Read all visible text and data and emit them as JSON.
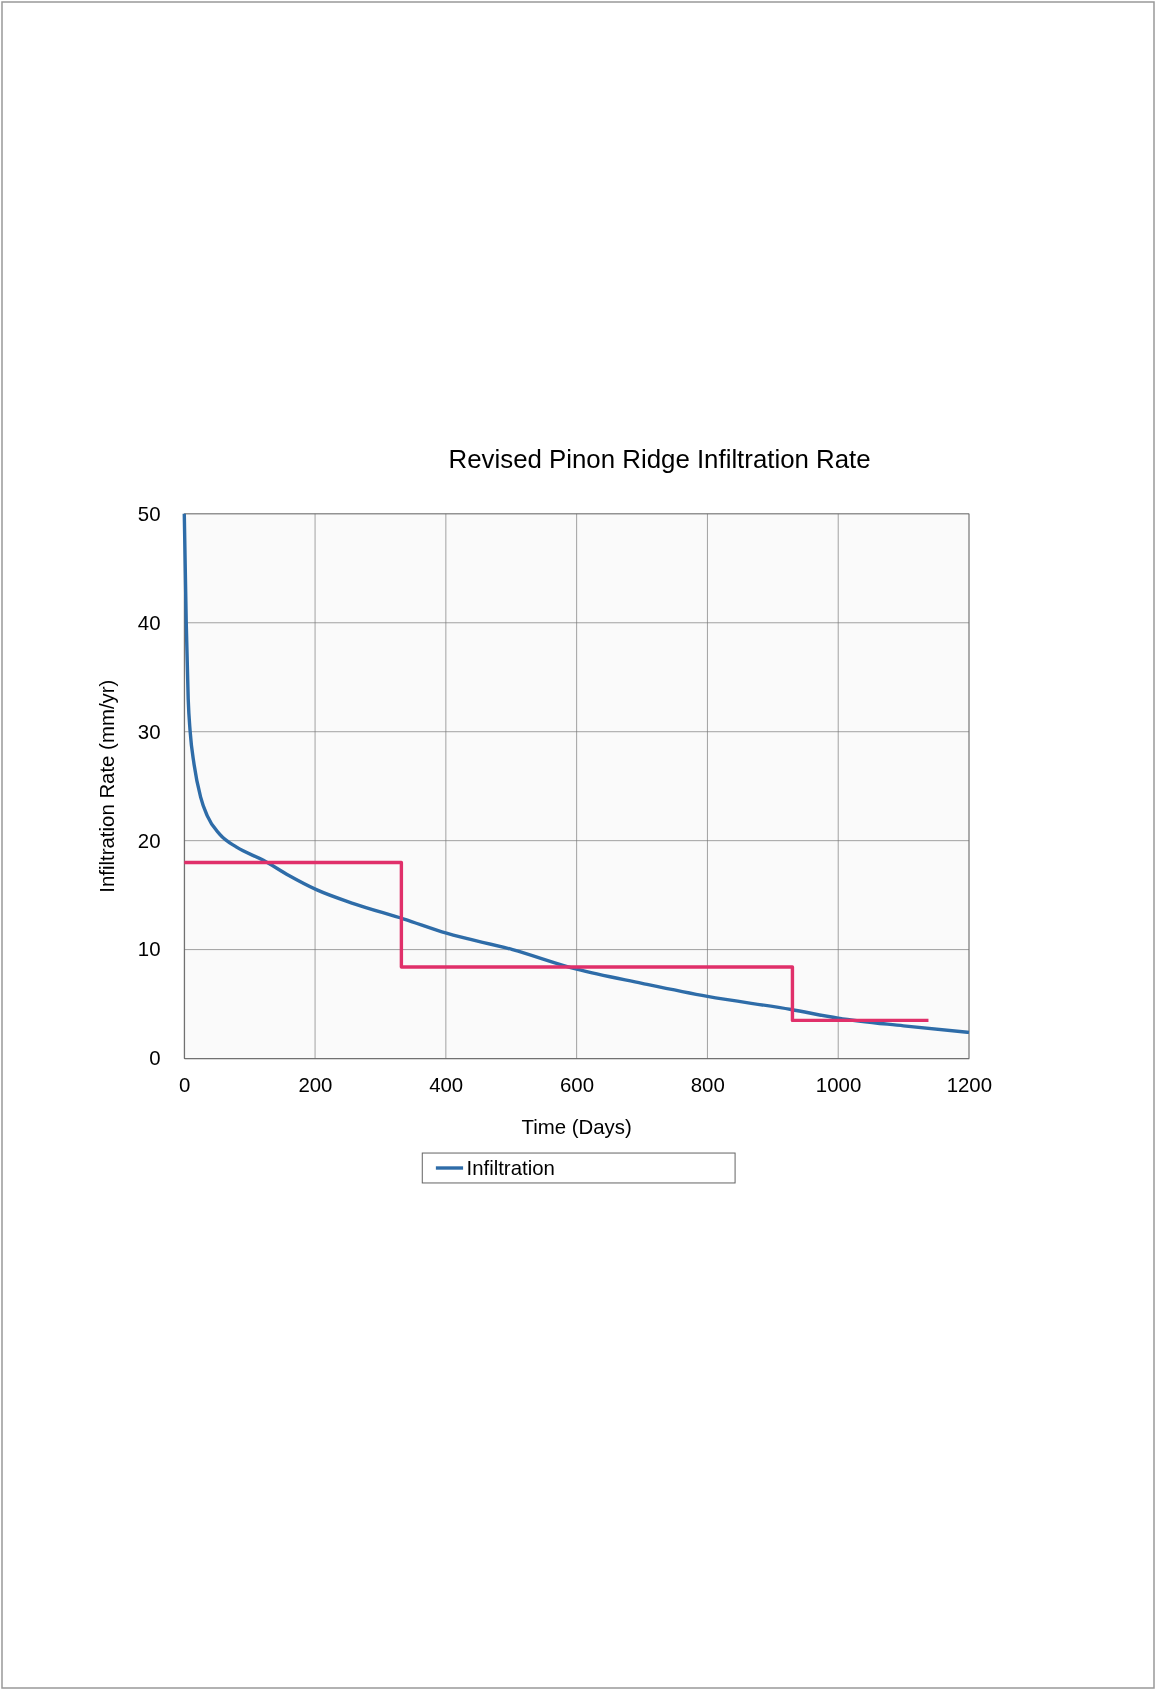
{
  "chart_data": {
    "type": "line",
    "title": "Revised Pinon Ridge Infiltration Rate",
    "xlabel": "Time (Days)",
    "ylabel": "Infiltration Rate (mm/yr)",
    "xlim": [
      0,
      1200
    ],
    "xticks": [
      0,
      200,
      400,
      600,
      800,
      1000,
      1200
    ],
    "ylim": [
      0,
      50
    ],
    "yticks": [
      0,
      10,
      20,
      30,
      40,
      50
    ],
    "grid": true,
    "legend": "bottom",
    "series": [
      {
        "name": "Infiltration",
        "color": "#2e6ca8",
        "x": [
          0,
          3,
          6,
          9,
          15,
          25,
          35,
          54,
          80,
          121,
          160,
          202,
          260,
          336,
          401,
          502,
          600,
          700,
          800,
          928,
          1000,
          1100,
          1200
        ],
        "values": [
          50,
          40,
          33,
          30,
          27,
          24,
          22.3,
          20.6,
          19.4,
          18.2,
          16.8,
          15.5,
          14.2,
          12.8,
          11.5,
          10,
          8.2,
          6.9,
          5.7,
          4.5,
          3.7,
          3,
          2.4
        ]
      },
      {
        "type": "step",
        "color": "#e0306a",
        "x": [
          0,
          332,
          930,
          1138
        ],
        "values": [
          18,
          8.4,
          3.5,
          3.5
        ]
      }
    ]
  }
}
